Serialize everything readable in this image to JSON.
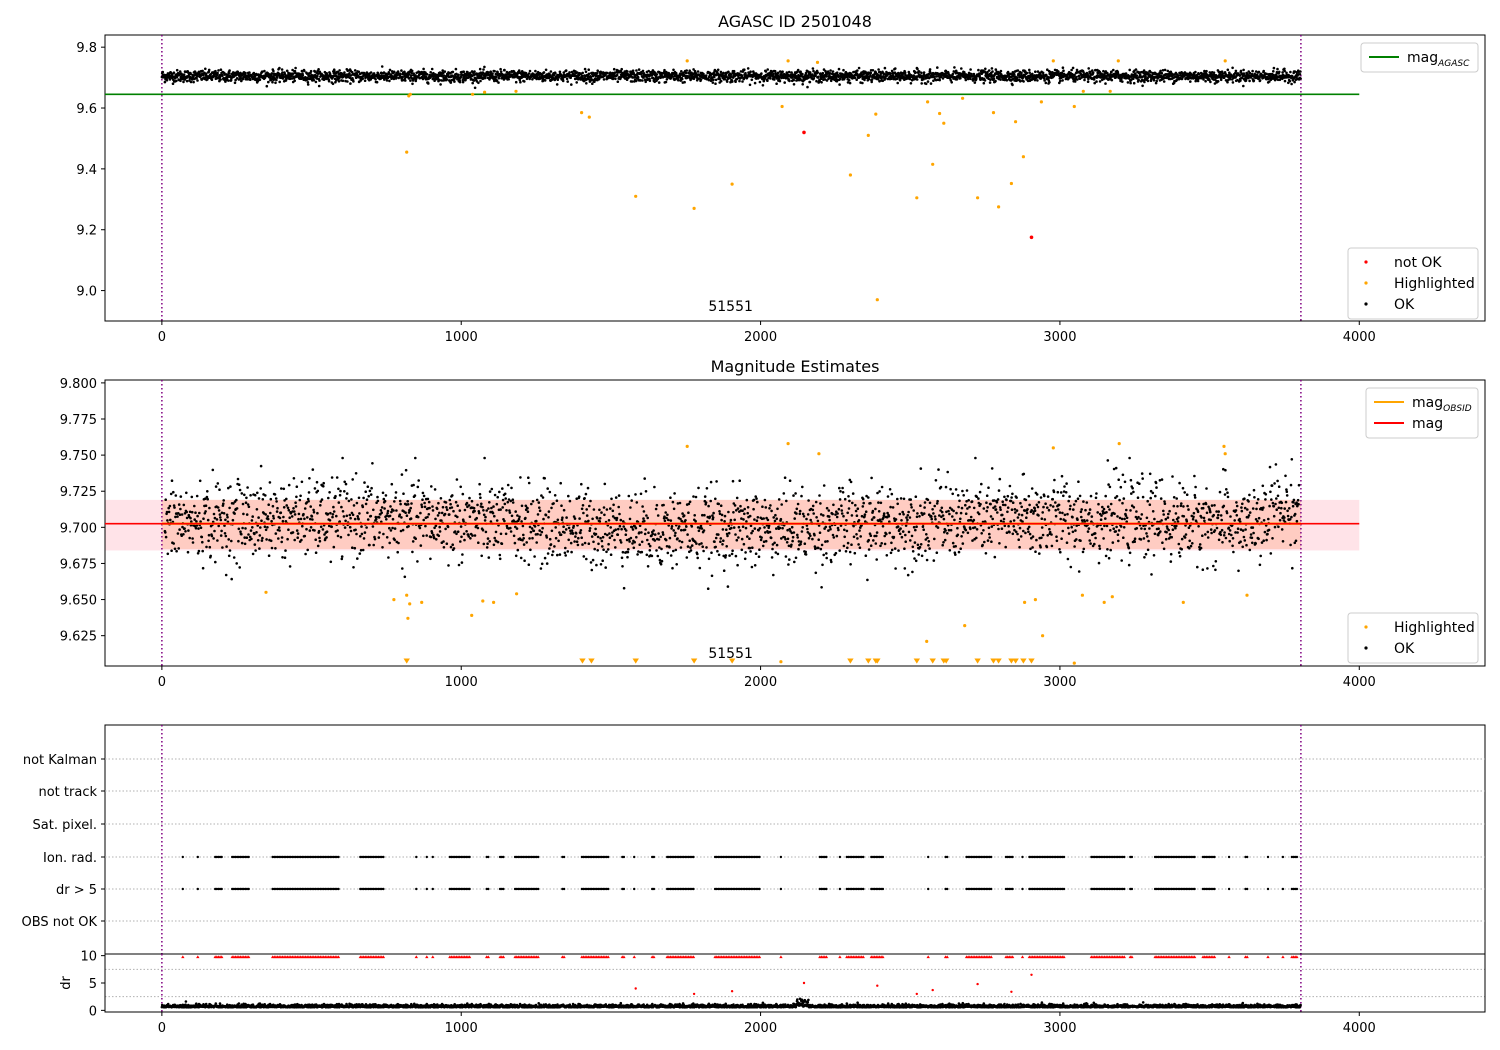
{
  "chart_data": [
    {
      "type": "scatter",
      "title": "AGASC ID 2501048",
      "annotation": "51551",
      "xlim": [
        -190,
        4420
      ],
      "ylim": [
        8.9,
        9.84
      ],
      "x_ticks": [
        0,
        1000,
        2000,
        3000,
        4000
      ],
      "y_ticks": [
        9.0,
        9.2,
        9.4,
        9.6,
        9.8
      ],
      "vlines": [
        0,
        3805
      ],
      "hlines": [
        {
          "name": "mag",
          "sub": "AGASC",
          "y": 9.645,
          "x": [
            -190,
            4000
          ],
          "color": "#008000"
        }
      ],
      "series": [
        {
          "name": "OK",
          "color": "#000000",
          "n": 3800,
          "center": 9.705,
          "spread": 0.012
        },
        {
          "name": "Highlighted",
          "color": "#ffa500",
          "points": [
            [
              818,
              9.455
            ],
            [
              825,
              9.64
            ],
            [
              830,
              9.645
            ],
            [
              1038,
              9.645
            ],
            [
              1078,
              9.652
            ],
            [
              1183,
              9.655
            ],
            [
              1402,
              9.585
            ],
            [
              1428,
              9.57
            ],
            [
              1583,
              9.31
            ],
            [
              1755,
              9.755
            ],
            [
              1778,
              9.27
            ],
            [
              1905,
              9.35
            ],
            [
              2072,
              9.605
            ],
            [
              2092,
              9.755
            ],
            [
              2190,
              9.75
            ],
            [
              2300,
              9.38
            ],
            [
              2360,
              9.51
            ],
            [
              2385,
              9.58
            ],
            [
              2390,
              8.97
            ],
            [
              2522,
              9.305
            ],
            [
              2558,
              9.62
            ],
            [
              2575,
              9.415
            ],
            [
              2598,
              9.582
            ],
            [
              2612,
              9.55
            ],
            [
              2675,
              9.632
            ],
            [
              2725,
              9.305
            ],
            [
              2778,
              9.585
            ],
            [
              2795,
              9.275
            ],
            [
              2838,
              9.352
            ],
            [
              2852,
              9.555
            ],
            [
              2878,
              9.44
            ],
            [
              2938,
              9.62
            ],
            [
              2978,
              9.755
            ],
            [
              3048,
              9.605
            ],
            [
              3078,
              9.655
            ],
            [
              3168,
              9.655
            ],
            [
              3195,
              9.755
            ],
            [
              3552,
              9.755
            ]
          ]
        },
        {
          "name": "not OK",
          "color": "#ff0000",
          "points": [
            [
              2145,
              9.52
            ],
            [
              2905,
              9.175
            ]
          ]
        }
      ],
      "legend": [
        {
          "label": "mag",
          "sub": "AGASC",
          "kind": "line",
          "color": "#008000"
        }
      ],
      "legend2": [
        {
          "label": "not OK",
          "kind": "dot",
          "color": "#ff0000"
        },
        {
          "label": "Highlighted",
          "kind": "dot",
          "color": "#ffa500"
        },
        {
          "label": "OK",
          "kind": "dot",
          "color": "#000000"
        }
      ]
    },
    {
      "type": "scatter",
      "title": "Magnitude Estimates",
      "annotation": "51551",
      "xlim": [
        -190,
        4420
      ],
      "ylim": [
        9.604,
        9.802
      ],
      "x_ticks": [
        0,
        1000,
        2000,
        3000,
        4000
      ],
      "y_ticks": [
        9.625,
        9.65,
        9.675,
        9.7,
        9.725,
        9.75,
        9.775,
        9.8
      ],
      "vlines": [
        0,
        3805
      ],
      "bands": [
        {
          "y": [
            9.684,
            9.719
          ],
          "x": [
            -190,
            4000
          ],
          "color": "#ffc0cb",
          "opacity": 0.45
        },
        {
          "y": [
            9.685,
            9.719
          ],
          "x": [
            0,
            3805
          ],
          "color": "#ffa07a",
          "opacity": 0.35
        }
      ],
      "hlines": [
        {
          "name": "mag",
          "sub": "OBSID",
          "y": 9.7025,
          "x": [
            0,
            3805
          ],
          "color": "#ffa500"
        },
        {
          "name": "mag",
          "y": 9.7025,
          "x": [
            -190,
            4000
          ],
          "color": "#ff0000"
        }
      ],
      "series": [
        {
          "name": "OK",
          "color": "#000000",
          "n": 2700,
          "center": 9.7025,
          "spread": 0.018
        },
        {
          "name": "Highlighted",
          "color": "#ffa500",
          "points": [
            [
              348,
              9.655
            ],
            [
              775,
              9.65
            ],
            [
              818,
              9.653
            ],
            [
              822,
              9.637
            ],
            [
              828,
              9.647
            ],
            [
              868,
              9.648
            ],
            [
              1035,
              9.639
            ],
            [
              1072,
              9.649
            ],
            [
              1108,
              9.648
            ],
            [
              1185,
              9.654
            ],
            [
              1755,
              9.756
            ],
            [
              2068,
              9.607
            ],
            [
              2092,
              9.758
            ],
            [
              2195,
              9.751
            ],
            [
              2555,
              9.621
            ],
            [
              2682,
              9.632
            ],
            [
              2882,
              9.648
            ],
            [
              2918,
              9.65
            ],
            [
              2942,
              9.625
            ],
            [
              2978,
              9.755
            ],
            [
              3048,
              9.606
            ],
            [
              3075,
              9.653
            ],
            [
              3148,
              9.648
            ],
            [
              3175,
              9.652
            ],
            [
              3198,
              9.758
            ],
            [
              3412,
              9.648
            ],
            [
              3548,
              9.756
            ],
            [
              3552,
              9.751
            ],
            [
              3625,
              9.653
            ]
          ]
        },
        {
          "name": "Highlighted-below",
          "color": "#ffa500",
          "marker": "triangle",
          "y": 9.606,
          "x": [
            818,
            1405,
            1435,
            1583,
            1778,
            1905,
            2300,
            2360,
            2385,
            2390,
            2522,
            2575,
            2612,
            2620,
            2725,
            2778,
            2795,
            2838,
            2852,
            2878,
            2905
          ]
        }
      ],
      "legend": [
        {
          "label": "mag",
          "sub": "OBSID",
          "kind": "line",
          "color": "#ffa500"
        },
        {
          "label": "mag",
          "kind": "line",
          "color": "#ff0000"
        }
      ],
      "legend2": [
        {
          "label": "Highlighted",
          "kind": "dot",
          "color": "#ffa500"
        },
        {
          "label": "OK",
          "kind": "dot",
          "color": "#000000"
        }
      ]
    },
    {
      "type": "scatter",
      "title": "",
      "xlim": [
        -190,
        4420
      ],
      "ylim": [
        -0.5,
        6.5
      ],
      "y_categories": [
        "not Kalman",
        "not track",
        "Sat. pixel.",
        "Ion. rad.",
        "dr > 5",
        "OBS not OK"
      ],
      "vlines": [
        0,
        3805
      ],
      "flag_ranges": [
        [
          70,
          72
        ],
        [
          120,
          122
        ],
        [
          178,
          200
        ],
        [
          235,
          292
        ],
        [
          370,
          592
        ],
        [
          663,
          745
        ],
        [
          850,
          855
        ],
        [
          885,
          888
        ],
        [
          905,
          910
        ],
        [
          962,
          1030
        ],
        [
          1085,
          1095
        ],
        [
          1130,
          1145
        ],
        [
          1180,
          1262
        ],
        [
          1338,
          1345
        ],
        [
          1403,
          1492
        ],
        [
          1538,
          1545
        ],
        [
          1578,
          1582
        ],
        [
          1638,
          1648
        ],
        [
          1688,
          1778
        ],
        [
          1848,
          1998
        ],
        [
          2068,
          2072
        ],
        [
          2198,
          2222
        ],
        [
          2265,
          2268
        ],
        [
          2288,
          2348
        ],
        [
          2370,
          2410
        ],
        [
          2560,
          2565
        ],
        [
          2618,
          2628
        ],
        [
          2688,
          2775
        ],
        [
          2820,
          2845
        ],
        [
          2875,
          2880
        ],
        [
          2898,
          3015
        ],
        [
          3105,
          3215
        ],
        [
          3235,
          3242
        ],
        [
          3318,
          3450
        ],
        [
          3478,
          3520
        ],
        [
          3565,
          3570
        ],
        [
          3620,
          3630
        ],
        [
          3695,
          3700
        ],
        [
          3745,
          3750
        ],
        [
          3775,
          3792
        ]
      ]
    },
    {
      "type": "scatter",
      "ylabel": "dr",
      "xlim": [
        -190,
        4420
      ],
      "ylim": [
        -0.3,
        10.3
      ],
      "x_ticks": [
        0,
        1000,
        2000,
        3000,
        4000
      ],
      "y_ticks": [
        0,
        5,
        10
      ],
      "vlines": [
        0,
        3805
      ],
      "series": [
        {
          "name": "dr",
          "color": "#000000",
          "n": 3800,
          "center": 0.55,
          "spread": 0.25
        },
        {
          "name": "dr>5 capped",
          "color": "#ff0000",
          "marker": "triangle",
          "y": 9.8
        },
        {
          "name": "dr outliers",
          "color": "#ff0000",
          "points": [
            [
              1583,
              4.0
            ],
            [
              1778,
              3.0
            ],
            [
              1905,
              3.5
            ],
            [
              2145,
              5.0
            ],
            [
              2390,
              4.5
            ],
            [
              2522,
              3.0
            ],
            [
              2575,
              3.7
            ],
            [
              2725,
              4.8
            ],
            [
              2838,
              3.4
            ],
            [
              2905,
              6.5
            ]
          ]
        }
      ]
    }
  ]
}
